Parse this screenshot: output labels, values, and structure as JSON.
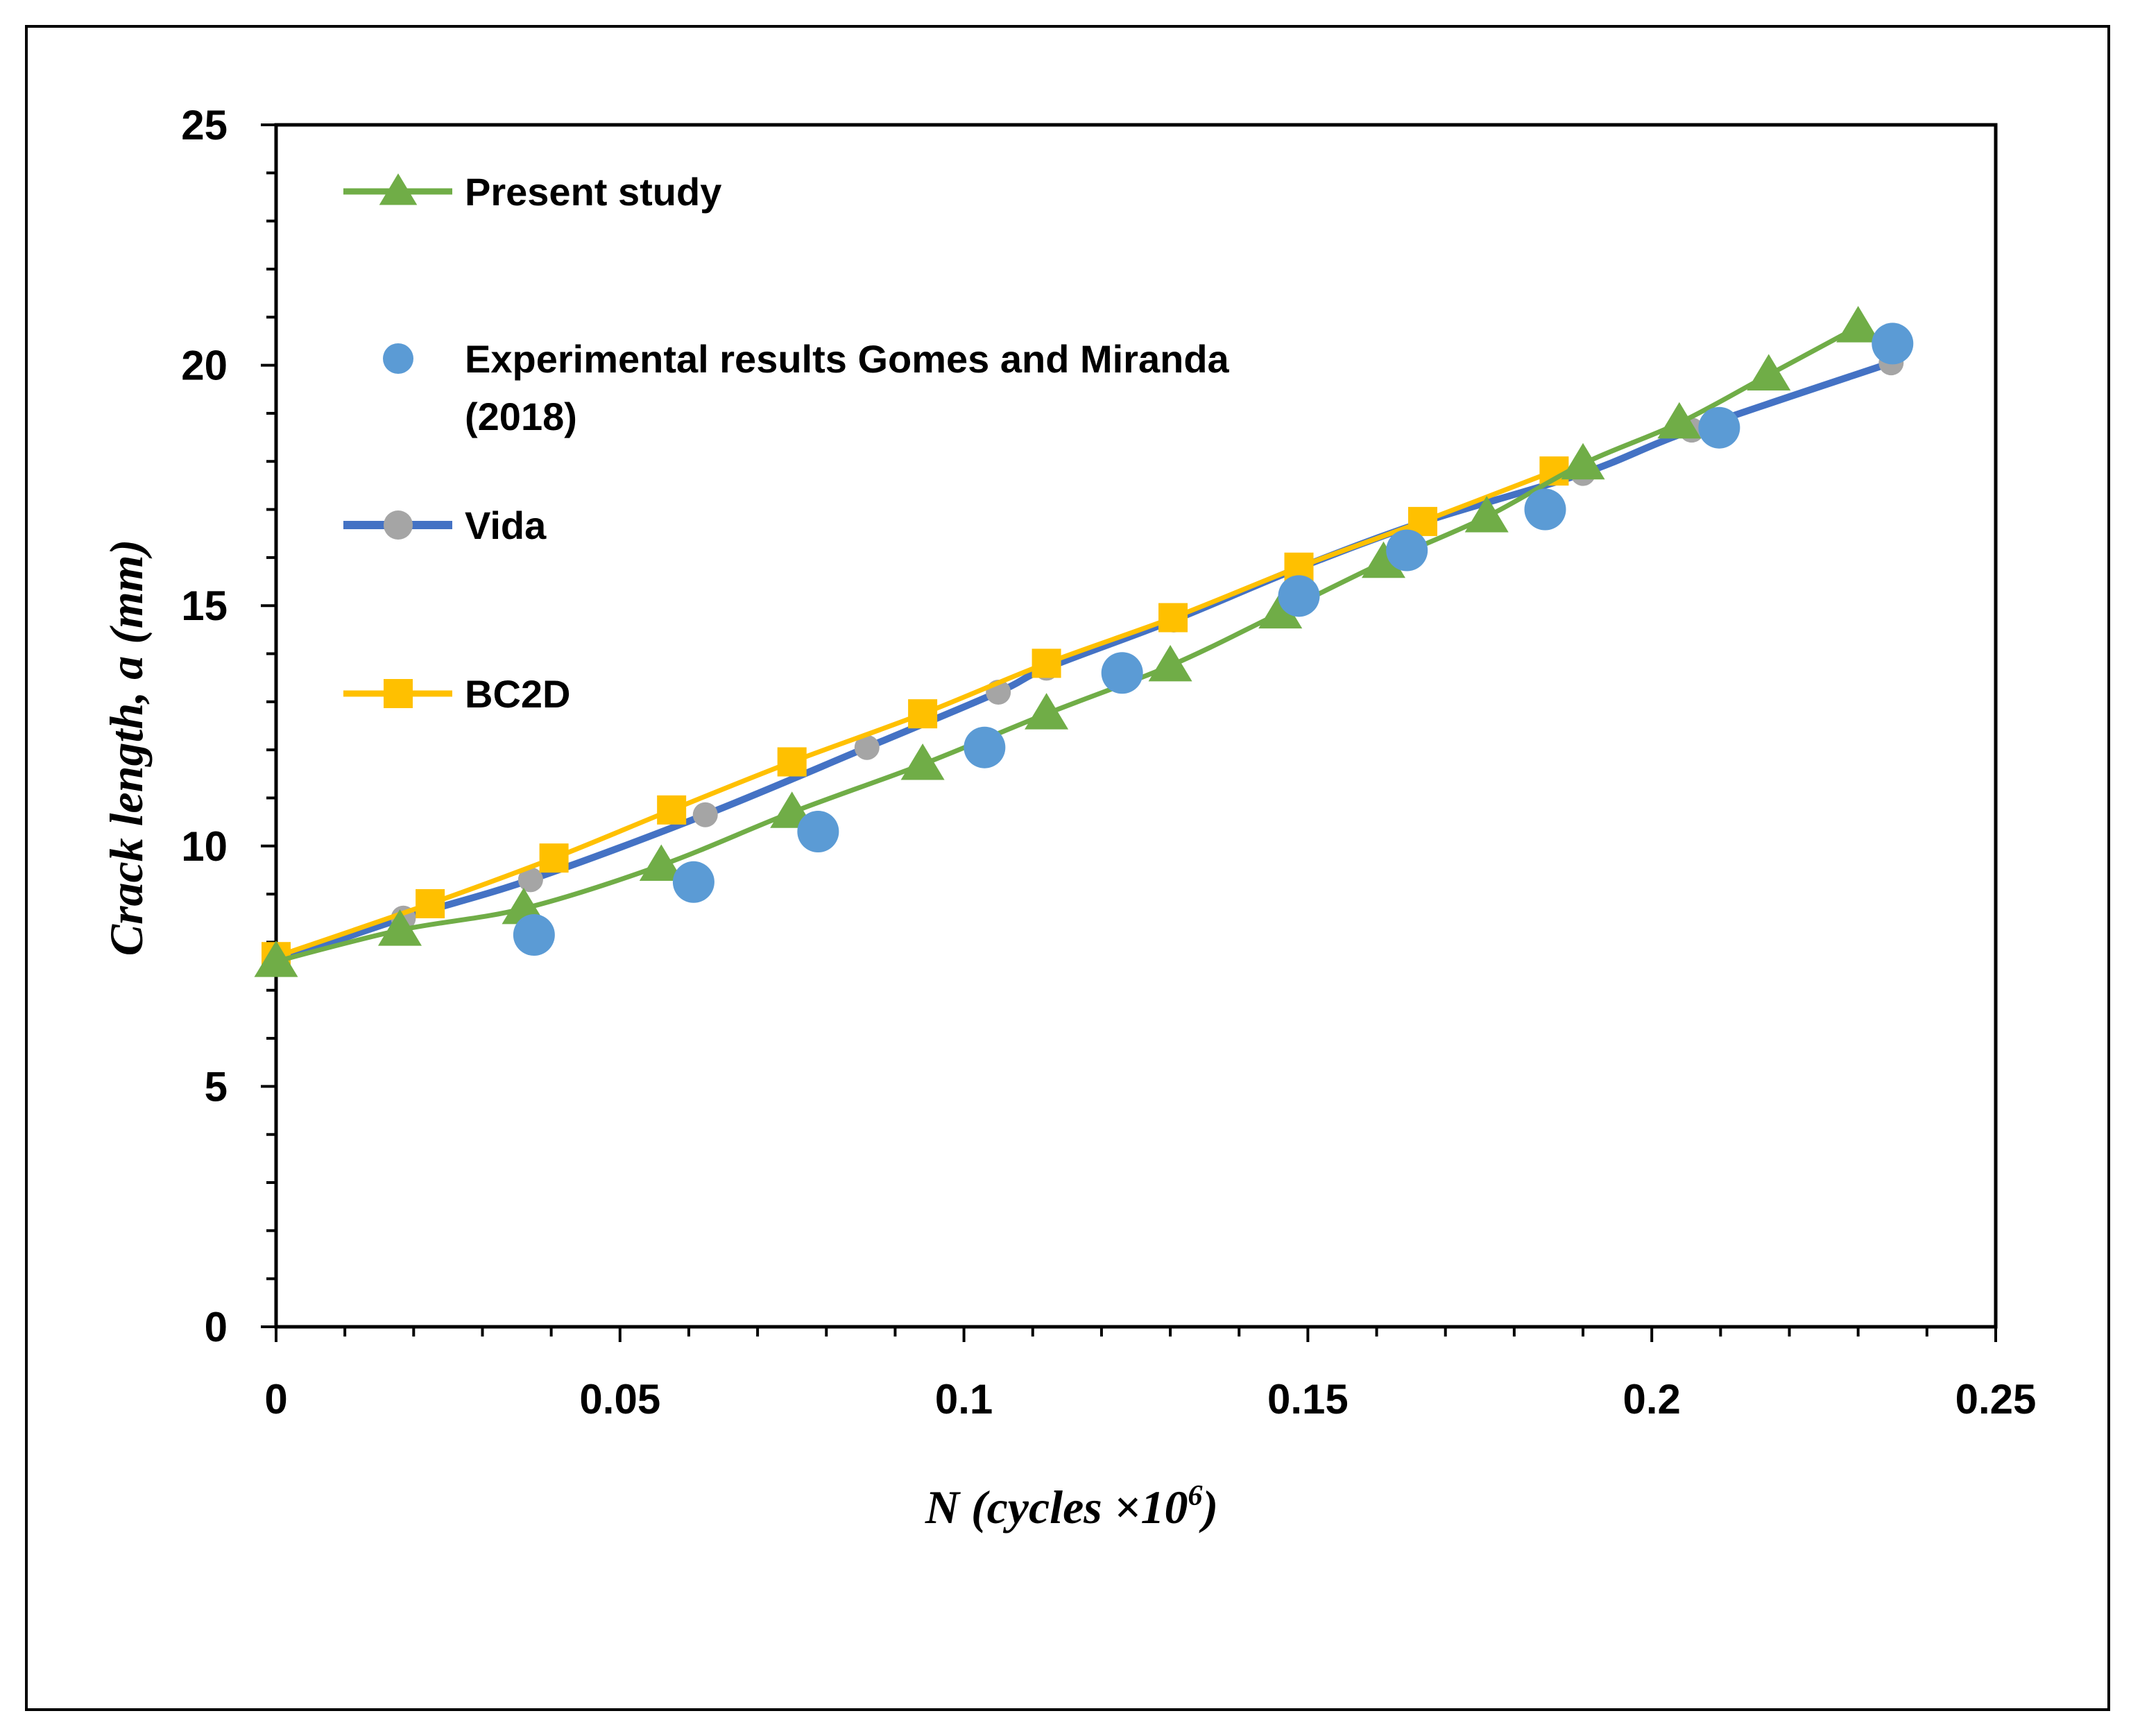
{
  "chart_data": {
    "type": "line",
    "title": "",
    "xlabel": "N (cycles ×10",
    "xlabel_sup": "6",
    "xlabel_close": ")",
    "ylabel": "Crack length, a (mm)",
    "xlim": [
      0,
      0.25
    ],
    "ylim": [
      0,
      25
    ],
    "xticks": [
      0,
      0.05,
      0.1,
      0.15,
      0.2,
      0.25
    ],
    "xtick_labels": [
      "0",
      "0.05",
      "0.1",
      "0.15",
      "0.2",
      "0.25"
    ],
    "yticks": [
      0,
      5,
      10,
      15,
      20,
      25
    ],
    "ytick_labels": [
      "0",
      "5",
      "10",
      "15",
      "20",
      "25"
    ],
    "grid": false,
    "legend_position": "top-left",
    "series": [
      {
        "name": "Present study",
        "line_label": "Present study",
        "color": "#70AD47",
        "marker": "triangle",
        "line": true,
        "x": [
          0,
          0.018,
          0.036,
          0.056,
          0.075,
          0.094,
          0.112,
          0.13,
          0.146,
          0.161,
          0.176,
          0.19,
          0.204,
          0.217,
          0.23
        ],
        "y": [
          7.6,
          8.25,
          8.7,
          9.6,
          10.7,
          11.7,
          12.75,
          13.75,
          14.85,
          15.9,
          16.85,
          17.95,
          18.8,
          19.8,
          20.8
        ]
      },
      {
        "name": "Experimental results Gomes and Miranda (2018)",
        "line_label": "Experimental results Gomes and Miranda",
        "line_label_2": "(2018)",
        "color": "#5B9BD5",
        "marker": "circle",
        "line": false,
        "x": [
          0.0375,
          0.0607,
          0.0788,
          0.103,
          0.123,
          0.1487,
          0.1644,
          0.1845,
          0.2098,
          0.235
        ],
        "y": [
          8.15,
          9.25,
          10.3,
          12.05,
          13.6,
          15.2,
          16.15,
          17.0,
          18.7,
          20.45
        ]
      },
      {
        "name": "Vida",
        "line_label": "Vida",
        "color": "#4472C4",
        "marker_color": "#A5A5A5",
        "marker": "circle",
        "line": true,
        "x": [
          0,
          0.0185,
          0.037,
          0.0624,
          0.0859,
          0.105,
          0.112,
          0.1305,
          0.149,
          0.167,
          0.19,
          0.2058,
          0.2348
        ],
        "y": [
          7.6,
          8.5,
          9.3,
          10.65,
          12.05,
          13.2,
          13.7,
          14.7,
          15.8,
          16.75,
          17.75,
          18.65,
          20.05
        ]
      },
      {
        "name": "BC2D",
        "line_label": "BC2D",
        "color": "#FFC000",
        "marker": "square",
        "line": true,
        "x": [
          0,
          0.0224,
          0.0404,
          0.0575,
          0.075,
          0.094,
          0.112,
          0.1304,
          0.1487,
          0.1667,
          0.1858
        ],
        "y": [
          7.7,
          8.8,
          9.75,
          10.75,
          11.75,
          12.75,
          13.8,
          14.75,
          15.8,
          16.75,
          17.8
        ]
      }
    ]
  }
}
